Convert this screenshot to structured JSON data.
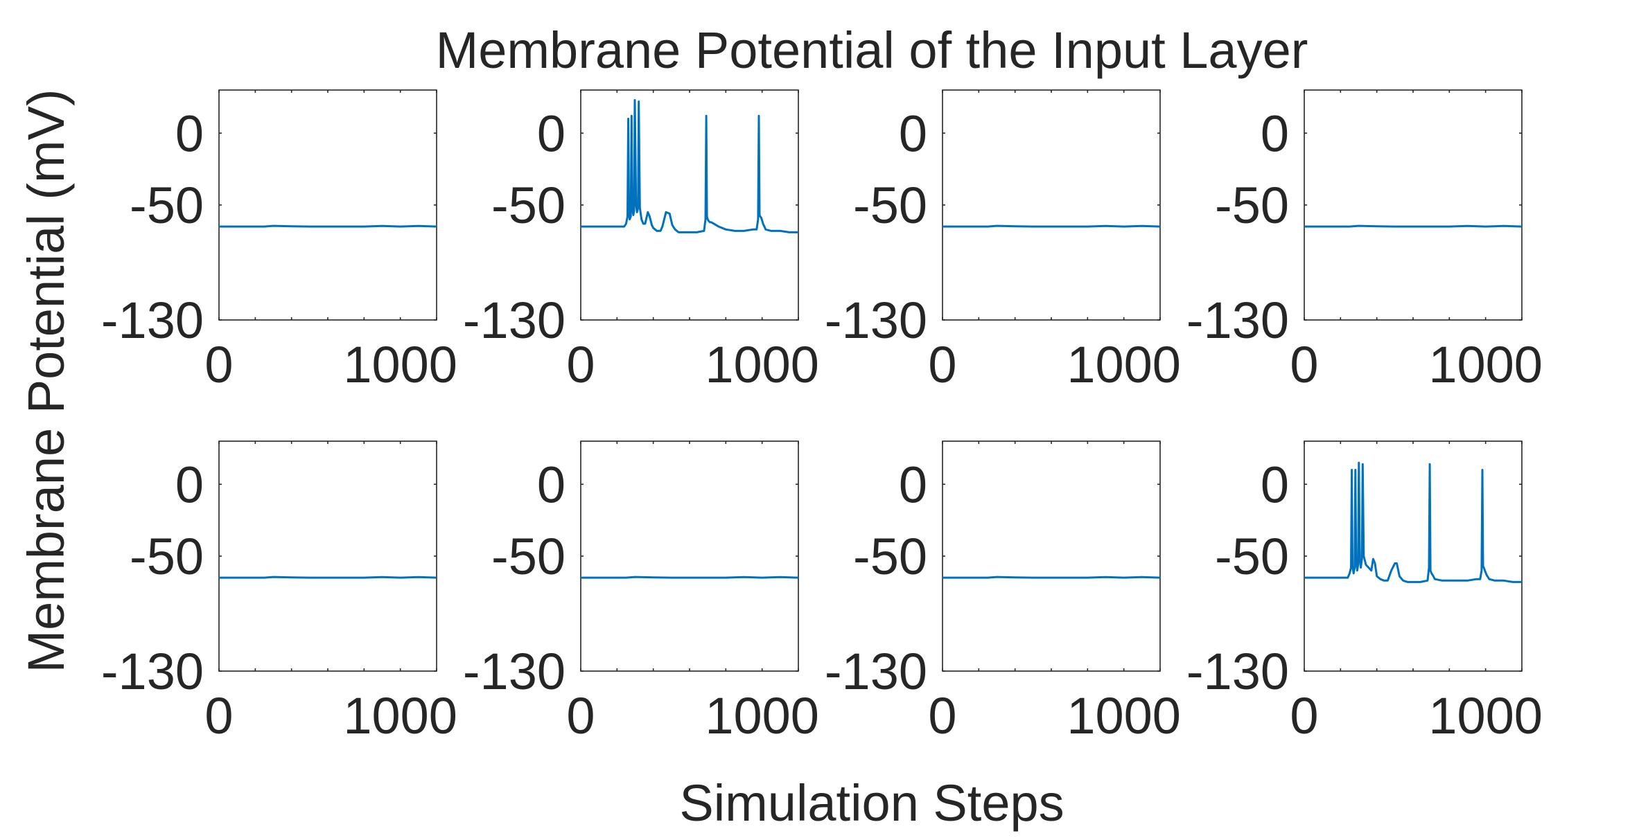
{
  "chart_data": {
    "type": "line",
    "title": "Membrane Potential of the Input Layer",
    "xlabel": "Simulation Steps",
    "ylabel": "Membrane Potential (mV)",
    "xlim": [
      0,
      1200
    ],
    "ylim": [
      -130,
      30
    ],
    "xticks": [
      0,
      1000
    ],
    "xtick_labels": [
      "0",
      "1000"
    ],
    "xticks_minor": [
      0,
      200,
      400,
      600,
      800,
      1000,
      1200
    ],
    "yticks": [
      -130,
      -50,
      0
    ],
    "ytick_labels": [
      "-130",
      "-50",
      "0"
    ],
    "line_color": "#0072BD",
    "grid": false,
    "layout": "2 rows x 4 columns",
    "panels": [
      {
        "x": [
          0,
          250,
          300,
          400,
          500,
          600,
          700,
          800,
          900,
          1000,
          1100,
          1200
        ],
        "y": [
          -65,
          -65,
          -64.5,
          -64.8,
          -65,
          -65,
          -65,
          -65,
          -64.6,
          -65,
          -64.6,
          -65
        ]
      },
      {
        "x": [
          0,
          240,
          250,
          258,
          262,
          266,
          270,
          276,
          280,
          284,
          290,
          294,
          298,
          305,
          310,
          316,
          320,
          326,
          335,
          345,
          355,
          370,
          380,
          392,
          400,
          420,
          440,
          450,
          470,
          490,
          505,
          520,
          540,
          560,
          600,
          640,
          680,
          688,
          692,
          696,
          700,
          705,
          712,
          720,
          760,
          800,
          850,
          900,
          950,
          970,
          978,
          982,
          986,
          990,
          996,
          1005,
          1020,
          1050,
          1100,
          1150,
          1200
        ],
        "y": [
          -65,
          -65,
          -63,
          -58,
          10,
          -55,
          -60,
          -58,
          12,
          -52,
          -57,
          -54,
          23,
          -50,
          -55,
          -52,
          22,
          -52,
          -60,
          -63,
          -63,
          -55,
          -58,
          -64,
          -66,
          -68,
          -68,
          -65,
          -55,
          -56,
          -64,
          -67,
          -69,
          -69,
          -69,
          -69,
          -68,
          -60,
          12,
          -58,
          -60,
          -61,
          -62,
          -62,
          -65,
          -67,
          -68,
          -68,
          -67,
          -67,
          -60,
          12,
          -57,
          -58,
          -59,
          -63,
          -67,
          -68,
          -68,
          -69,
          -69
        ]
      },
      {
        "x": [
          0,
          250,
          300,
          400,
          500,
          600,
          700,
          800,
          900,
          1000,
          1100,
          1200
        ],
        "y": [
          -65,
          -65,
          -64.5,
          -64.8,
          -65,
          -65,
          -65,
          -65,
          -64.6,
          -65,
          -64.6,
          -65
        ]
      },
      {
        "x": [
          0,
          250,
          300,
          400,
          500,
          600,
          700,
          800,
          900,
          1000,
          1100,
          1200
        ],
        "y": [
          -65,
          -65,
          -64.5,
          -64.8,
          -65,
          -65,
          -65,
          -65,
          -64.6,
          -65,
          -64.6,
          -65
        ]
      },
      {
        "x": [
          0,
          250,
          300,
          400,
          500,
          600,
          700,
          800,
          900,
          1000,
          1100,
          1200
        ],
        "y": [
          -65,
          -65,
          -64.5,
          -64.8,
          -65,
          -65,
          -65,
          -65,
          -64.6,
          -65,
          -64.6,
          -65
        ]
      },
      {
        "x": [
          0,
          250,
          300,
          400,
          500,
          600,
          700,
          800,
          900,
          1000,
          1100,
          1200
        ],
        "y": [
          -65,
          -65,
          -64.5,
          -64.8,
          -65,
          -65,
          -65,
          -65,
          -64.6,
          -65,
          -64.6,
          -65
        ]
      },
      {
        "x": [
          0,
          250,
          300,
          400,
          500,
          600,
          700,
          800,
          900,
          1000,
          1100,
          1200
        ],
        "y": [
          -65,
          -65,
          -64.5,
          -64.8,
          -65,
          -65,
          -65,
          -65,
          -64.6,
          -65,
          -64.6,
          -65
        ]
      },
      {
        "x": [
          0,
          240,
          250,
          258,
          262,
          266,
          272,
          278,
          282,
          286,
          292,
          297,
          301,
          306,
          312,
          318,
          322,
          328,
          340,
          355,
          370,
          380,
          390,
          400,
          420,
          440,
          460,
          480,
          500,
          510,
          525,
          545,
          570,
          600,
          640,
          680,
          688,
          692,
          696,
          702,
          712,
          720,
          760,
          800,
          850,
          900,
          950,
          970,
          978,
          982,
          986,
          990,
          996,
          1005,
          1020,
          1050,
          1100,
          1150,
          1200
        ],
        "y": [
          -65,
          -65,
          -62,
          -58,
          10,
          -57,
          -62,
          -58,
          10,
          -53,
          -60,
          -56,
          15,
          -52,
          -58,
          -52,
          14,
          -50,
          -56,
          -58,
          -60,
          -52,
          -55,
          -64,
          -66,
          -67,
          -67,
          -60,
          -55,
          -55,
          -64,
          -67,
          -68,
          -68,
          -68,
          -67,
          -58,
          14,
          -60,
          -62,
          -64,
          -66,
          -67,
          -67,
          -67,
          -67,
          -66,
          -66,
          -60,
          10,
          -57,
          -58,
          -60,
          -63,
          -66,
          -67,
          -67,
          -68,
          -68
        ]
      }
    ]
  }
}
